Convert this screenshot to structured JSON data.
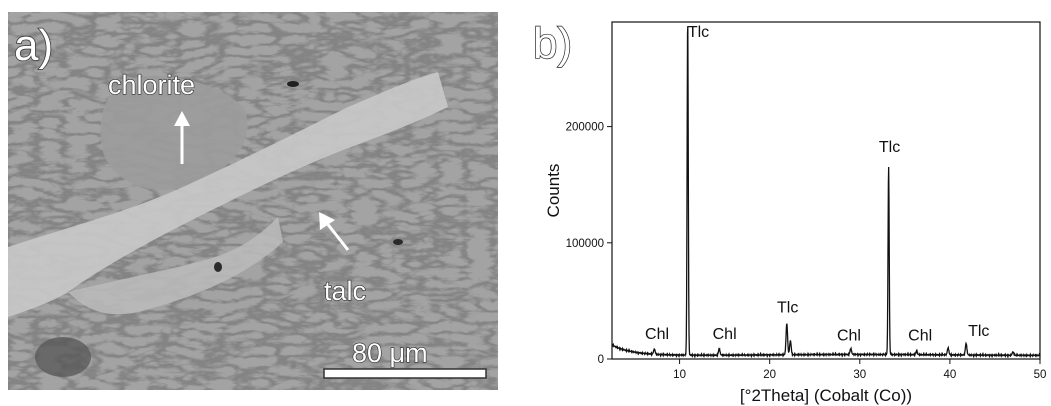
{
  "panel_a": {
    "label": "a)",
    "annotations": [
      {
        "text": "chlorite"
      },
      {
        "text": "talc"
      }
    ],
    "scale_bar_label": "80 μm"
  },
  "chart_data": {
    "type": "line",
    "panel_label": "b)",
    "title": "",
    "xlabel": "[°2Theta] (Cobalt (Co))",
    "ylabel": "Counts",
    "xlim": [
      2.5,
      50
    ],
    "ylim": [
      0,
      290000
    ],
    "xticks": [
      10,
      20,
      30,
      40,
      50
    ],
    "yticks": [
      0,
      100000,
      200000
    ],
    "ytick_labels": [
      "0",
      "100000",
      "200000"
    ],
    "grid": false,
    "peaks": [
      {
        "x": 7.2,
        "y": 4500
      },
      {
        "x": 10.9,
        "y": 290000
      },
      {
        "x": 14.4,
        "y": 5500
      },
      {
        "x": 21.9,
        "y": 27000
      },
      {
        "x": 22.3,
        "y": 12000
      },
      {
        "x": 29.0,
        "y": 5000
      },
      {
        "x": 33.2,
        "y": 162000
      },
      {
        "x": 36.3,
        "y": 3000
      },
      {
        "x": 39.8,
        "y": 6000
      },
      {
        "x": 41.8,
        "y": 10000
      },
      {
        "x": 47.0,
        "y": 3000
      }
    ],
    "annotations": [
      {
        "text": "Tlc",
        "x": 12.1,
        "y": 277000
      },
      {
        "text": "Tlc",
        "x": 33.3,
        "y": 178000
      },
      {
        "text": "Tlc",
        "x": 22.0,
        "y": 40000
      },
      {
        "text": "Tlc",
        "x": 43.2,
        "y": 20000
      },
      {
        "text": "Chl",
        "x": 7.5,
        "y": 17000
      },
      {
        "text": "Chl",
        "x": 15.0,
        "y": 17000
      },
      {
        "text": "Chl",
        "x": 28.8,
        "y": 16000
      },
      {
        "text": "Chl",
        "x": 36.7,
        "y": 16000
      }
    ]
  }
}
